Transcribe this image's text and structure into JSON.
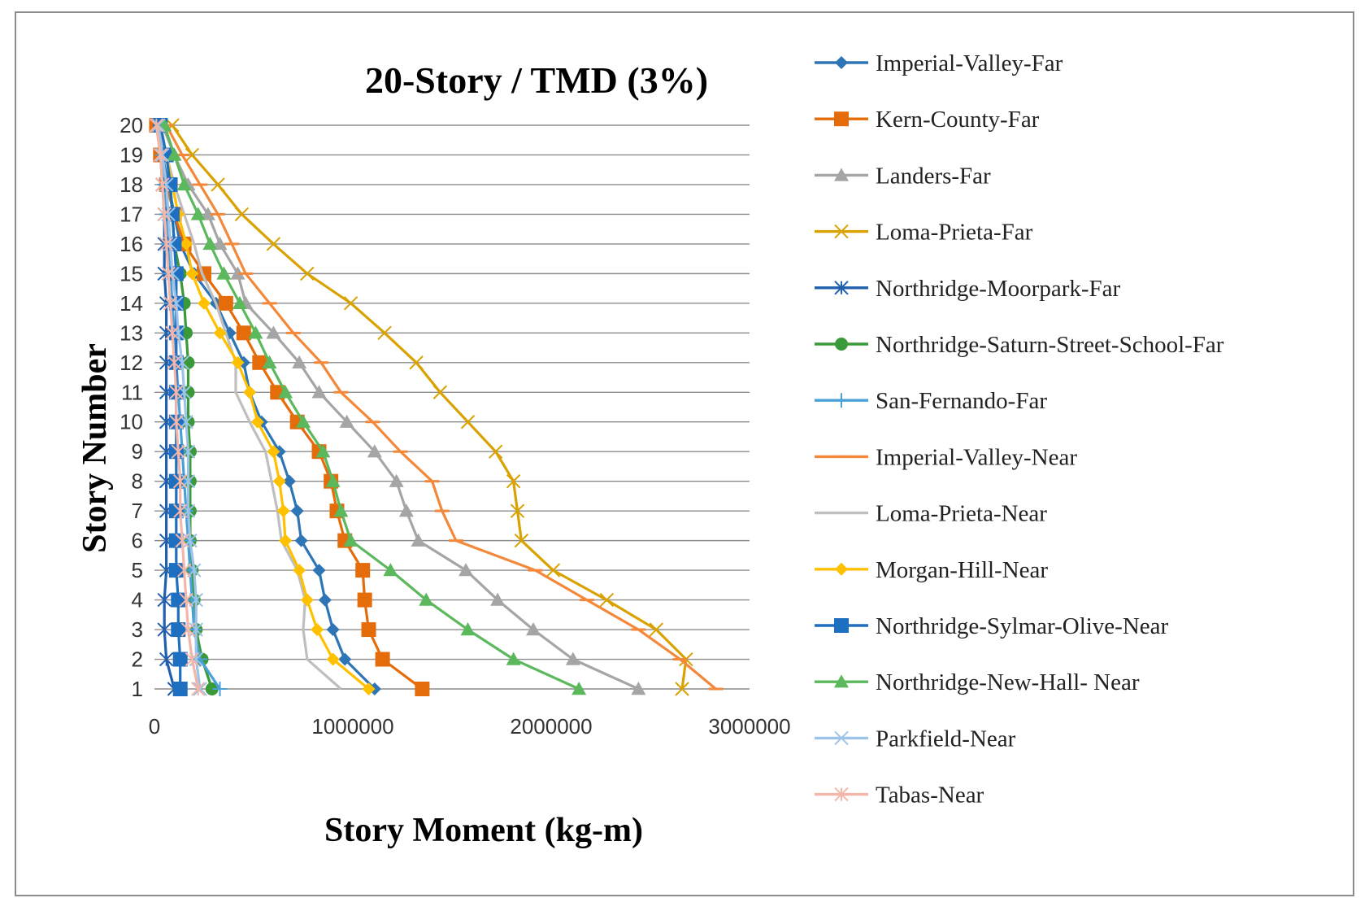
{
  "chart_data": {
    "type": "line",
    "title": "20-Story / TMD  (3%)",
    "xlabel": "Story Moment (kg-m)",
    "ylabel": "Story Number",
    "xlim": [
      0,
      3000000
    ],
    "ylim": [
      1,
      20
    ],
    "x_ticks": [
      0,
      1000000,
      2000000,
      3000000
    ],
    "x_tick_labels": [
      "0",
      "1000000",
      "2000000",
      "3000000"
    ],
    "y_ticks": [
      1,
      2,
      3,
      4,
      5,
      6,
      7,
      8,
      9,
      10,
      11,
      12,
      13,
      14,
      15,
      16,
      17,
      18,
      19,
      20
    ],
    "y_tick_labels": [
      "1",
      "2",
      "3",
      "4",
      "5",
      "6",
      "7",
      "8",
      "9",
      "10",
      "11",
      "12",
      "13",
      "14",
      "15",
      "16",
      "17",
      "18",
      "19",
      "20"
    ],
    "grid": "horizontal",
    "legend_position": "right",
    "stories": [
      1,
      2,
      3,
      4,
      5,
      6,
      7,
      8,
      9,
      10,
      11,
      12,
      13,
      14,
      15,
      16,
      17,
      18,
      19,
      20
    ],
    "series": [
      {
        "name": "Imperial-Valley-Far",
        "color": "#2E75B6",
        "marker": "diamond",
        "values": [
          1110000,
          960000,
          900000,
          860000,
          830000,
          740000,
          720000,
          680000,
          630000,
          540000,
          480000,
          450000,
          380000,
          310000,
          200000,
          130000,
          100000,
          70000,
          40000,
          20000
        ]
      },
      {
        "name": "Kern-County-Far",
        "color": "#E46C0A",
        "marker": "square",
        "values": [
          1350000,
          1150000,
          1080000,
          1060000,
          1050000,
          960000,
          920000,
          890000,
          830000,
          720000,
          620000,
          530000,
          450000,
          360000,
          250000,
          150000,
          100000,
          60000,
          30000,
          10000
        ]
      },
      {
        "name": "Landers-Far",
        "color": "#A5A5A5",
        "marker": "triangle",
        "values": [
          2440000,
          2110000,
          1910000,
          1730000,
          1570000,
          1330000,
          1270000,
          1220000,
          1110000,
          970000,
          830000,
          730000,
          600000,
          460000,
          420000,
          330000,
          270000,
          170000,
          100000,
          40000
        ]
      },
      {
        "name": "Loma-Prieta-Far",
        "color": "#D9A200",
        "marker": "x",
        "values": [
          2660000,
          2680000,
          2530000,
          2280000,
          2010000,
          1850000,
          1830000,
          1810000,
          1720000,
          1580000,
          1440000,
          1320000,
          1160000,
          990000,
          770000,
          600000,
          440000,
          320000,
          190000,
          90000
        ]
      },
      {
        "name": "Northridge-Moorpark-Far",
        "color": "#1F5FAD",
        "marker": "asterisk",
        "values": [
          100000,
          60000,
          50000,
          50000,
          60000,
          60000,
          60000,
          60000,
          60000,
          60000,
          60000,
          60000,
          60000,
          60000,
          50000,
          50000,
          50000,
          40000,
          30000,
          20000
        ]
      },
      {
        "name": "Northridge-Saturn-Street-School-Far",
        "color": "#3A9A3A",
        "marker": "circle",
        "values": [
          290000,
          240000,
          210000,
          200000,
          190000,
          180000,
          180000,
          180000,
          180000,
          170000,
          170000,
          170000,
          160000,
          150000,
          130000,
          100000,
          90000,
          80000,
          60000,
          30000
        ]
      },
      {
        "name": "San-Fernando-Far",
        "color": "#4AA0D8",
        "marker": "plus",
        "values": [
          330000,
          230000,
          200000,
          190000,
          180000,
          170000,
          160000,
          150000,
          140000,
          130000,
          120000,
          110000,
          100000,
          90000,
          80000,
          70000,
          60000,
          50000,
          40000,
          30000
        ]
      },
      {
        "name": "Imperial-Valley-Near",
        "color": "#F4883A",
        "marker": "dash",
        "values": [
          2830000,
          2650000,
          2440000,
          2180000,
          1920000,
          1520000,
          1450000,
          1400000,
          1240000,
          1100000,
          940000,
          840000,
          700000,
          580000,
          460000,
          390000,
          320000,
          230000,
          140000,
          60000
        ]
      },
      {
        "name": "Loma-Prieta-Near",
        "color": "#BFBFBF",
        "marker": "none",
        "values": [
          940000,
          770000,
          750000,
          760000,
          720000,
          640000,
          620000,
          590000,
          560000,
          480000,
          410000,
          410000,
          360000,
          310000,
          240000,
          200000,
          150000,
          100000,
          60000,
          20000
        ]
      },
      {
        "name": "Morgan-Hill-Near",
        "color": "#FFC000",
        "marker": "diamond",
        "values": [
          1080000,
          900000,
          820000,
          770000,
          730000,
          660000,
          650000,
          630000,
          600000,
          520000,
          480000,
          420000,
          330000,
          250000,
          190000,
          160000,
          120000,
          90000,
          60000,
          30000
        ]
      },
      {
        "name": "Northridge-Sylmar-Olive-Near",
        "color": "#1F6FC0",
        "marker": "square",
        "values": [
          130000,
          130000,
          120000,
          120000,
          110000,
          110000,
          110000,
          110000,
          110000,
          110000,
          110000,
          110000,
          110000,
          110000,
          110000,
          100000,
          90000,
          80000,
          60000,
          30000
        ]
      },
      {
        "name": "Northridge-New-Hall- Near",
        "color": "#5CB85C",
        "marker": "triangle",
        "values": [
          2140000,
          1810000,
          1580000,
          1370000,
          1190000,
          990000,
          940000,
          900000,
          850000,
          750000,
          660000,
          580000,
          510000,
          430000,
          350000,
          280000,
          220000,
          150000,
          100000,
          50000
        ]
      },
      {
        "name": "Parkfield-Near",
        "color": "#9DC3E6",
        "marker": "x",
        "values": [
          230000,
          210000,
          210000,
          210000,
          200000,
          180000,
          170000,
          170000,
          170000,
          160000,
          150000,
          140000,
          120000,
          110000,
          90000,
          80000,
          70000,
          60000,
          40000,
          20000
        ]
      },
      {
        "name": "Tabas-Near",
        "color": "#F4B6A8",
        "marker": "asterisk",
        "values": [
          220000,
          190000,
          170000,
          160000,
          150000,
          140000,
          130000,
          130000,
          120000,
          110000,
          110000,
          100000,
          90000,
          80000,
          70000,
          60000,
          50000,
          40000,
          30000,
          10000
        ]
      }
    ]
  }
}
